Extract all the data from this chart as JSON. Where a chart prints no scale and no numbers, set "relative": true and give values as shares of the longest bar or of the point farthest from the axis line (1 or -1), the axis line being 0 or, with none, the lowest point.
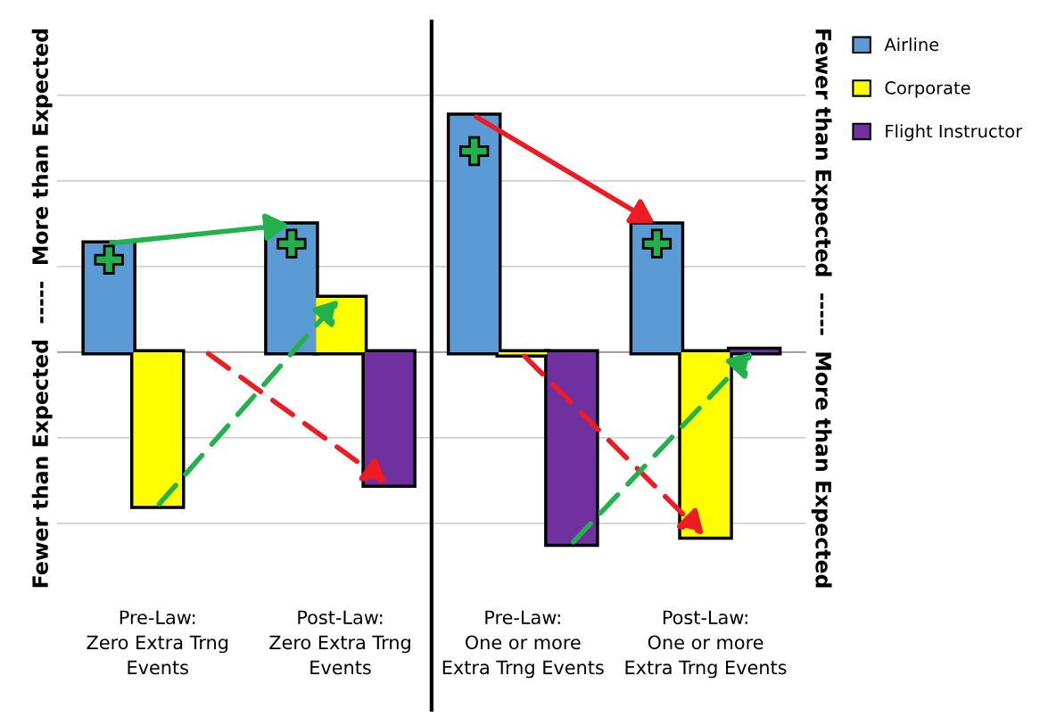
{
  "chart_data": {
    "type": "bar",
    "relative": true,
    "ylabel": "Fewer than Expected  -----  More than Expected",
    "y2label": "Fewer than Expected  -----  More than Expected",
    "categories": [
      "Pre-Law:\nZero Extra Trng\nEvents",
      "Post-Law:\nZero Extra Trng\nEvents",
      "Pre-Law:\nOne or more\nExtra Trng Events",
      "Post-Law:\nOne or more\nExtra Trng Events"
    ],
    "series": [
      {
        "name": "Airline",
        "color": "#5b9bd5",
        "values": [
          0.46,
          0.54,
          1,
          0.54
        ]
      },
      {
        "name": "Corporate",
        "color": "#ffff00",
        "values": [
          -0.65,
          0.23,
          -0.01,
          -0.78
        ]
      },
      {
        "name": "Flight Instructor",
        "color": "#7030a0",
        "values": [
          null,
          -0.56,
          -0.81,
          0.01
        ]
      }
    ],
    "grid": "y",
    "legend": "top right"
  }
}
